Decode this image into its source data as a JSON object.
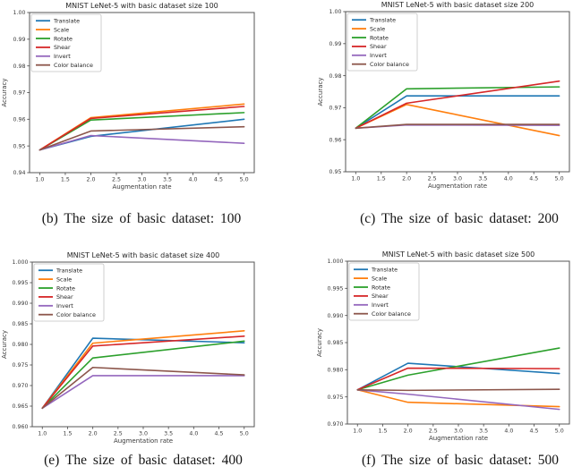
{
  "page": {
    "background": "#ffffff",
    "text_color": "#303030"
  },
  "chart_data": [
    {
      "id": "b",
      "type": "line",
      "title": "MNIST LeNet-5 with basic dataset size 100",
      "caption": "(b) The size of basic dataset: 100",
      "xlabel": "Augmentation rate",
      "ylabel": "Accuracy",
      "x": [
        1.0,
        2.0,
        5.0
      ],
      "xlim": [
        0.8,
        5.2
      ],
      "ylim": [
        0.94,
        1.0
      ],
      "xticks": [
        "1.0",
        "1.5",
        "2.0",
        "2.5",
        "3.0",
        "3.5",
        "4.0",
        "4.5",
        "5.0"
      ],
      "yticks": [
        "0.94",
        "0.95",
        "0.96",
        "0.97",
        "0.98",
        "0.99",
        "1.00"
      ],
      "grid": false,
      "legend_position": "upper left",
      "series": [
        {
          "name": "Translate",
          "color": "#1f77b4",
          "values": [
            0.9485,
            0.9536,
            0.96
          ]
        },
        {
          "name": "Scale",
          "color": "#ff7f0e",
          "values": [
            0.9485,
            0.9606,
            0.9657
          ]
        },
        {
          "name": "Rotate",
          "color": "#2ca02c",
          "values": [
            0.9485,
            0.9597,
            0.9625
          ]
        },
        {
          "name": "Shear",
          "color": "#d62728",
          "values": [
            0.9485,
            0.9603,
            0.9648
          ]
        },
        {
          "name": "Invert",
          "color": "#9467bd",
          "values": [
            0.9485,
            0.9539,
            0.951
          ]
        },
        {
          "name": "Color balance",
          "color": "#8c564b",
          "values": [
            0.9485,
            0.9556,
            0.9572
          ]
        }
      ]
    },
    {
      "id": "c",
      "type": "line",
      "title": "MNIST LeNet-5 with basic dataset size 200",
      "caption": "(c) The size of basic dataset: 200",
      "xlabel": "Augmentation rate",
      "ylabel": "Accuracy",
      "x": [
        1.0,
        2.0,
        5.0
      ],
      "xlim": [
        0.8,
        5.2
      ],
      "ylim": [
        0.95,
        1.0
      ],
      "xticks": [
        "1.0",
        "1.5",
        "2.0",
        "2.5",
        "3.0",
        "3.5",
        "4.0",
        "4.5",
        "5.0"
      ],
      "yticks": [
        "0.95",
        "0.96",
        "0.97",
        "0.98",
        "0.99",
        "1.00"
      ],
      "grid": false,
      "legend_position": "upper left",
      "series": [
        {
          "name": "Translate",
          "color": "#1f77b4",
          "values": [
            0.9636,
            0.9737,
            0.9737
          ]
        },
        {
          "name": "Scale",
          "color": "#ff7f0e",
          "values": [
            0.9636,
            0.971,
            0.9613
          ]
        },
        {
          "name": "Rotate",
          "color": "#2ca02c",
          "values": [
            0.9636,
            0.9759,
            0.9765
          ]
        },
        {
          "name": "Shear",
          "color": "#d62728",
          "values": [
            0.9636,
            0.9714,
            0.9783
          ]
        },
        {
          "name": "Invert",
          "color": "#9467bd",
          "values": [
            0.9636,
            0.9646,
            0.9645
          ]
        },
        {
          "name": "Color balance",
          "color": "#8c564b",
          "values": [
            0.9636,
            0.9648,
            0.9648
          ]
        }
      ]
    },
    {
      "id": "e",
      "type": "line",
      "title": "MNIST LeNet-5 with basic dataset size 400",
      "caption": "(e) The size of basic dataset: 400",
      "xlabel": "Augmentation rate",
      "ylabel": "Accuracy",
      "x": [
        1.0,
        2.0,
        5.0
      ],
      "xlim": [
        0.8,
        5.2
      ],
      "ylim": [
        0.96,
        1.0
      ],
      "xticks": [
        "1.0",
        "1.5",
        "2.0",
        "2.5",
        "3.0",
        "3.5",
        "4.0",
        "4.5",
        "5.0"
      ],
      "yticks": [
        "0.960",
        "0.965",
        "0.970",
        "0.975",
        "0.980",
        "0.985",
        "0.990",
        "0.995",
        "1.000"
      ],
      "grid": false,
      "legend_position": "upper left",
      "series": [
        {
          "name": "Translate",
          "color": "#1f77b4",
          "values": [
            0.9645,
            0.9815,
            0.9804
          ]
        },
        {
          "name": "Scale",
          "color": "#ff7f0e",
          "values": [
            0.9645,
            0.9803,
            0.9833
          ]
        },
        {
          "name": "Rotate",
          "color": "#2ca02c",
          "values": [
            0.9645,
            0.9767,
            0.9808
          ]
        },
        {
          "name": "Shear",
          "color": "#d62728",
          "values": [
            0.9645,
            0.9796,
            0.982
          ]
        },
        {
          "name": "Invert",
          "color": "#9467bd",
          "values": [
            0.9645,
            0.9724,
            0.9724
          ]
        },
        {
          "name": "Color balance",
          "color": "#8c564b",
          "values": [
            0.9645,
            0.9744,
            0.9726
          ]
        }
      ]
    },
    {
      "id": "f",
      "type": "line",
      "title": "MNIST LeNet-5 with basic dataset size 500",
      "caption": "(f) The size of basic dataset: 500",
      "xlabel": "Augmentation rate",
      "ylabel": "Accuracy",
      "x": [
        1.0,
        2.0,
        5.0
      ],
      "xlim": [
        0.8,
        5.2
      ],
      "ylim": [
        0.97,
        1.0
      ],
      "xticks": [
        "1.0",
        "1.5",
        "2.0",
        "2.5",
        "3.0",
        "3.5",
        "4.0",
        "4.5",
        "5.0"
      ],
      "yticks": [
        "0.970",
        "0.975",
        "0.980",
        "0.985",
        "0.990",
        "0.995",
        "1.000"
      ],
      "grid": false,
      "legend_position": "upper left",
      "series": [
        {
          "name": "Translate",
          "color": "#1f77b4",
          "values": [
            0.9763,
            0.9812,
            0.9793
          ]
        },
        {
          "name": "Scale",
          "color": "#ff7f0e",
          "values": [
            0.9763,
            0.974,
            0.9732
          ]
        },
        {
          "name": "Rotate",
          "color": "#2ca02c",
          "values": [
            0.9763,
            0.979,
            0.984
          ]
        },
        {
          "name": "Shear",
          "color": "#d62728",
          "values": [
            0.9763,
            0.9803,
            0.9802
          ]
        },
        {
          "name": "Invert",
          "color": "#9467bd",
          "values": [
            0.9763,
            0.9755,
            0.9727
          ]
        },
        {
          "name": "Color balance",
          "color": "#8c564b",
          "values": [
            0.9763,
            0.9762,
            0.9764
          ]
        }
      ]
    }
  ]
}
